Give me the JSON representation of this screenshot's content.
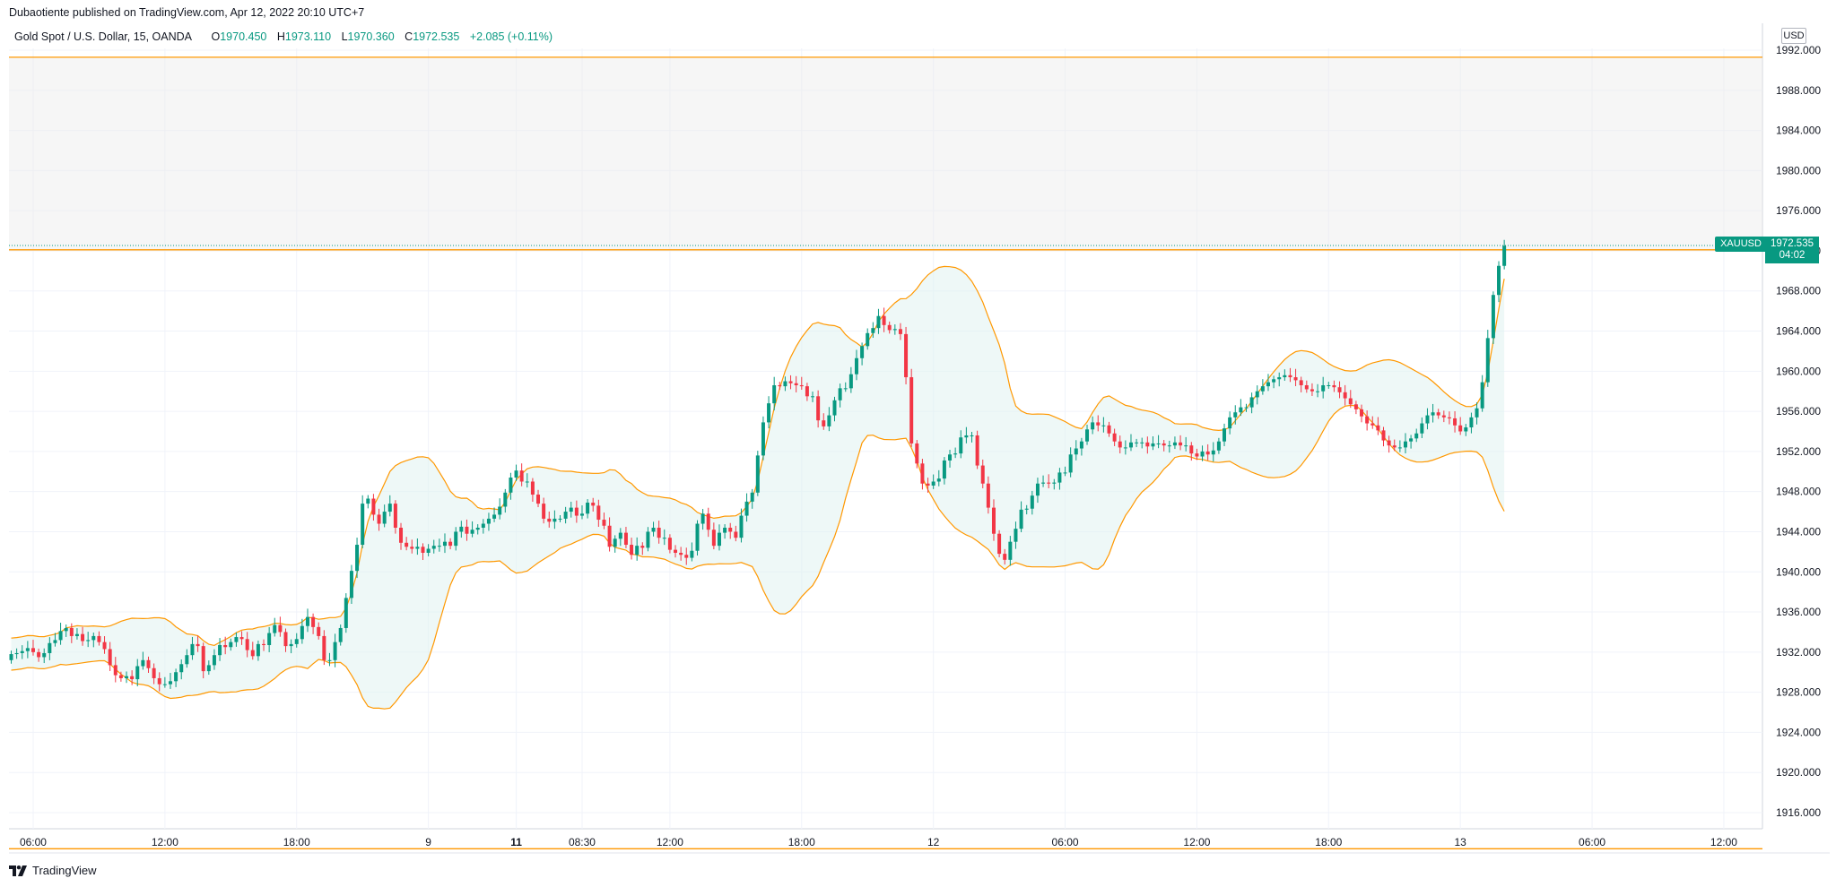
{
  "header": {
    "published": "Dubaotiente published on TradingView.com, Apr 12, 2022 20:10 UTC+7"
  },
  "legend": {
    "symbol": "Gold Spot / U.S. Dollar, 15, OANDA",
    "o_key": "O",
    "o_val": "1970.450",
    "h_key": "H",
    "h_val": "1973.110",
    "l_key": "L",
    "l_val": "1970.360",
    "c_key": "C",
    "c_val": "1972.535",
    "change": "+2.085 (+0.11%)"
  },
  "currency": "USD",
  "last_price": {
    "symbol": "XAUUSD",
    "price": "1972.535",
    "countdown": "04:02"
  },
  "branding": {
    "logo_text": "TradingView"
  },
  "colors": {
    "up": "#089981",
    "down": "#f23645",
    "band": "#ff9800",
    "band_fill": "#e0f2f1",
    "zone_fill": "#ececec",
    "grid": "#f0f3fa"
  },
  "chart_data": {
    "type": "candlestick",
    "title": "Gold Spot / U.S. Dollar, 15, OANDA",
    "ylim": [
      1912,
      1994
    ],
    "y_ticks": [
      1916,
      1920,
      1924,
      1928,
      1932,
      1936,
      1940,
      1944,
      1948,
      1952,
      1956,
      1960,
      1964,
      1968,
      1972,
      1976,
      1980,
      1984,
      1988,
      1992
    ],
    "y_tick_labels": [
      "1916.000",
      "1920.000",
      "1924.000",
      "1928.000",
      "1932.000",
      "1936.000",
      "1940.000",
      "1944.000",
      "1948.000",
      "1952.000",
      "1956.000",
      "1960.000",
      "1964.000",
      "1968.000",
      "1972.000",
      "1976.000",
      "1980.000",
      "1984.000",
      "1988.000",
      "1992.000"
    ],
    "x_tick_labels": [
      {
        "label": "06:00",
        "bar": 4,
        "bold": false
      },
      {
        "label": "12:00",
        "bar": 28,
        "bold": false
      },
      {
        "label": "18:00",
        "bar": 52,
        "bold": false
      },
      {
        "label": "9",
        "bar": 76,
        "bold": false
      },
      {
        "label": "11",
        "bar": 92,
        "bold": true
      },
      {
        "label": "08:30",
        "bar": 104,
        "bold": false
      },
      {
        "label": "12:00",
        "bar": 120,
        "bold": false
      },
      {
        "label": "18:00",
        "bar": 144,
        "bold": false
      },
      {
        "label": "12",
        "bar": 168,
        "bold": false
      },
      {
        "label": "06:00",
        "bar": 192,
        "bold": false
      },
      {
        "label": "12:00",
        "bar": 216,
        "bold": false
      },
      {
        "label": "18:00",
        "bar": 240,
        "bold": false
      },
      {
        "label": "13",
        "bar": 264,
        "bold": false
      },
      {
        "label": "06:00",
        "bar": 288,
        "bold": false
      },
      {
        "label": "12:00",
        "bar": 312,
        "bold": false
      }
    ],
    "indicator": "Bollinger Bands",
    "resistance_zone": [
      1972.1,
      1991.3
    ],
    "support_level": 1912.4,
    "last_price": 1972.535,
    "series": [
      {
        "name": "close",
        "values": [
          1931.8,
          1931.9,
          1932.1,
          1932.4,
          1932.0,
          1931.5,
          1931.9,
          1932.9,
          1933.2,
          1934.1,
          1934.4,
          1933.6,
          1933.8,
          1933.1,
          1933.2,
          1933.6,
          1933.0,
          1932.3,
          1930.7,
          1929.7,
          1929.4,
          1929.6,
          1929.3,
          1930.6,
          1931.2,
          1930.4,
          1929.4,
          1928.8,
          1928.8,
          1929.1,
          1930.0,
          1930.8,
          1931.7,
          1932.8,
          1932.6,
          1930.1,
          1930.7,
          1931.7,
          1932.7,
          1932.5,
          1933.0,
          1933.5,
          1933.3,
          1932.2,
          1931.6,
          1932.8,
          1932.7,
          1933.9,
          1934.7,
          1934.0,
          1932.6,
          1932.8,
          1933.3,
          1934.6,
          1935.5,
          1934.5,
          1933.6,
          1931.2,
          1931.2,
          1933.0,
          1934.4,
          1937.4,
          1940.1,
          1942.7,
          1946.8,
          1947.3,
          1945.7,
          1944.8,
          1946.0,
          1946.8,
          1944.4,
          1942.9,
          1942.5,
          1942.3,
          1942.5,
          1941.9,
          1942.3,
          1942.6,
          1942.6,
          1943.0,
          1942.6,
          1944.0,
          1944.5,
          1943.8,
          1944.2,
          1944.4,
          1944.8,
          1945.3,
          1945.7,
          1946.5,
          1947.9,
          1949.4,
          1950.1,
          1949.0,
          1949.0,
          1947.7,
          1946.8,
          1945.3,
          1945.0,
          1945.3,
          1945.3,
          1946.0,
          1946.4,
          1945.6,
          1945.8,
          1946.9,
          1946.6,
          1945.2,
          1944.6,
          1942.5,
          1943.3,
          1943.9,
          1942.7,
          1941.7,
          1942.6,
          1942.4,
          1944.0,
          1944.4,
          1943.4,
          1943.4,
          1942.2,
          1941.9,
          1941.7,
          1941.4,
          1942.1,
          1944.8,
          1945.8,
          1944.2,
          1942.6,
          1943.9,
          1944.4,
          1944.0,
          1943.4,
          1945.6,
          1947.0,
          1947.9,
          1951.6,
          1954.9,
          1956.8,
          1958.6,
          1958.5,
          1959.0,
          1958.8,
          1958.6,
          1958.5,
          1957.5,
          1957.5,
          1955.1,
          1954.5,
          1955.6,
          1957.1,
          1958.3,
          1958.3,
          1959.7,
          1961.3,
          1962.5,
          1963.8,
          1964.3,
          1965.5,
          1964.6,
          1964.1,
          1964.2,
          1963.7,
          1959.4,
          1952.8,
          1950.8,
          1948.8,
          1948.6,
          1949.0,
          1949.3,
          1951.1,
          1951.7,
          1951.8,
          1953.4,
          1953.6,
          1953.6,
          1950.6,
          1948.8,
          1946.4,
          1943.8,
          1941.8,
          1941.2,
          1943.0,
          1944.3,
          1946.2,
          1946.3,
          1947.6,
          1948.8,
          1948.9,
          1948.8,
          1948.9,
          1949.9,
          1949.9,
          1951.7,
          1952.3,
          1953.0,
          1954.2,
          1954.9,
          1954.6,
          1954.6,
          1953.8,
          1953.0,
          1952.4,
          1952.4,
          1952.9,
          1952.9,
          1952.9,
          1952.5,
          1952.8,
          1952.8,
          1952.6,
          1952.6,
          1952.9,
          1952.6,
          1952.6,
          1951.8,
          1951.5,
          1952.0,
          1951.7,
          1952.1,
          1953.0,
          1954.3,
          1955.4,
          1955.9,
          1956.4,
          1956.4,
          1957.4,
          1958.0,
          1958.5,
          1958.9,
          1959.2,
          1959.4,
          1959.6,
          1959.4,
          1959.1,
          1958.6,
          1958.2,
          1958.0,
          1958.0,
          1958.6,
          1958.6,
          1958.4,
          1957.9,
          1957.3,
          1956.7,
          1956.2,
          1955.5,
          1954.8,
          1954.6,
          1954.1,
          1953.1,
          1952.6,
          1952.4,
          1952.4,
          1953.0,
          1953.3,
          1953.8,
          1954.8,
          1955.6,
          1955.9,
          1955.6,
          1955.4,
          1955.3,
          1954.6,
          1954.0,
          1954.4,
          1955.4,
          1956.3,
          1958.9,
          1963.3,
          1967.6,
          1970.5,
          1972.5
        ]
      },
      {
        "name": "open",
        "values": [
          1931.2,
          1931.8,
          1931.9,
          1932.1,
          1932.4,
          1932.0,
          1931.5,
          1931.9,
          1932.9,
          1933.2,
          1934.1,
          1934.4,
          1933.6,
          1933.8,
          1933.1,
          1933.2,
          1933.6,
          1933.0,
          1932.3,
          1930.7,
          1929.7,
          1929.4,
          1929.6,
          1929.3,
          1930.6,
          1931.2,
          1930.4,
          1929.4,
          1928.8,
          1928.8,
          1929.1,
          1930.0,
          1930.8,
          1931.7,
          1932.8,
          1932.6,
          1930.1,
          1930.7,
          1931.7,
          1932.7,
          1932.5,
          1933.0,
          1933.5,
          1933.3,
          1932.2,
          1931.6,
          1932.8,
          1932.7,
          1933.9,
          1934.7,
          1934.0,
          1932.6,
          1932.8,
          1933.3,
          1934.6,
          1935.5,
          1934.5,
          1933.6,
          1931.2,
          1931.2,
          1933.0,
          1934.4,
          1937.4,
          1940.1,
          1942.7,
          1946.8,
          1947.3,
          1945.7,
          1944.8,
          1946.0,
          1946.8,
          1944.4,
          1942.9,
          1942.5,
          1942.3,
          1942.5,
          1941.9,
          1942.3,
          1942.6,
          1942.6,
          1943.0,
          1942.6,
          1944.0,
          1944.5,
          1943.8,
          1944.2,
          1944.4,
          1944.8,
          1945.3,
          1945.7,
          1946.5,
          1947.9,
          1949.4,
          1950.1,
          1949.0,
          1949.0,
          1947.7,
          1946.8,
          1945.3,
          1945.0,
          1945.3,
          1945.3,
          1946.0,
          1946.4,
          1945.6,
          1945.8,
          1946.9,
          1946.6,
          1945.2,
          1944.6,
          1942.5,
          1943.3,
          1943.9,
          1942.7,
          1941.7,
          1942.6,
          1942.4,
          1944.0,
          1944.4,
          1943.4,
          1943.4,
          1942.2,
          1941.9,
          1941.7,
          1941.4,
          1942.1,
          1944.8,
          1945.8,
          1944.2,
          1942.6,
          1943.9,
          1944.4,
          1944.0,
          1943.4,
          1945.6,
          1947.0,
          1947.9,
          1951.6,
          1954.9,
          1956.8,
          1958.6,
          1958.5,
          1959.0,
          1958.8,
          1958.6,
          1958.5,
          1957.5,
          1957.5,
          1955.1,
          1954.5,
          1955.6,
          1957.1,
          1958.3,
          1958.3,
          1959.7,
          1961.3,
          1962.5,
          1963.8,
          1964.3,
          1965.5,
          1964.6,
          1964.1,
          1964.2,
          1963.7,
          1959.4,
          1952.8,
          1950.8,
          1948.8,
          1948.6,
          1949.0,
          1949.3,
          1951.1,
          1951.7,
          1951.8,
          1953.4,
          1953.6,
          1953.6,
          1950.6,
          1948.8,
          1946.4,
          1943.8,
          1941.8,
          1941.2,
          1943.0,
          1944.3,
          1946.2,
          1946.3,
          1947.6,
          1948.8,
          1948.9,
          1948.8,
          1948.9,
          1949.9,
          1949.9,
          1951.7,
          1952.3,
          1953.0,
          1954.2,
          1954.9,
          1954.6,
          1954.6,
          1953.8,
          1953.0,
          1952.4,
          1952.4,
          1952.9,
          1952.9,
          1952.9,
          1952.5,
          1952.8,
          1952.8,
          1952.6,
          1952.6,
          1952.9,
          1952.6,
          1952.6,
          1951.8,
          1951.5,
          1952.0,
          1951.7,
          1952.1,
          1953.0,
          1954.3,
          1955.4,
          1955.9,
          1956.4,
          1956.4,
          1957.4,
          1958.0,
          1958.5,
          1958.9,
          1959.2,
          1959.4,
          1959.6,
          1959.4,
          1959.1,
          1958.6,
          1958.2,
          1958.0,
          1958.0,
          1958.6,
          1958.6,
          1958.4,
          1957.9,
          1957.3,
          1956.7,
          1956.2,
          1955.5,
          1954.8,
          1954.6,
          1954.1,
          1953.1,
          1952.6,
          1952.4,
          1952.4,
          1953.0,
          1953.3,
          1953.8,
          1954.8,
          1955.6,
          1955.9,
          1955.6,
          1955.4,
          1955.3,
          1954.6,
          1954.0,
          1954.4,
          1955.4,
          1956.3,
          1958.9,
          1963.3,
          1967.6,
          1970.5
        ]
      }
    ]
  }
}
